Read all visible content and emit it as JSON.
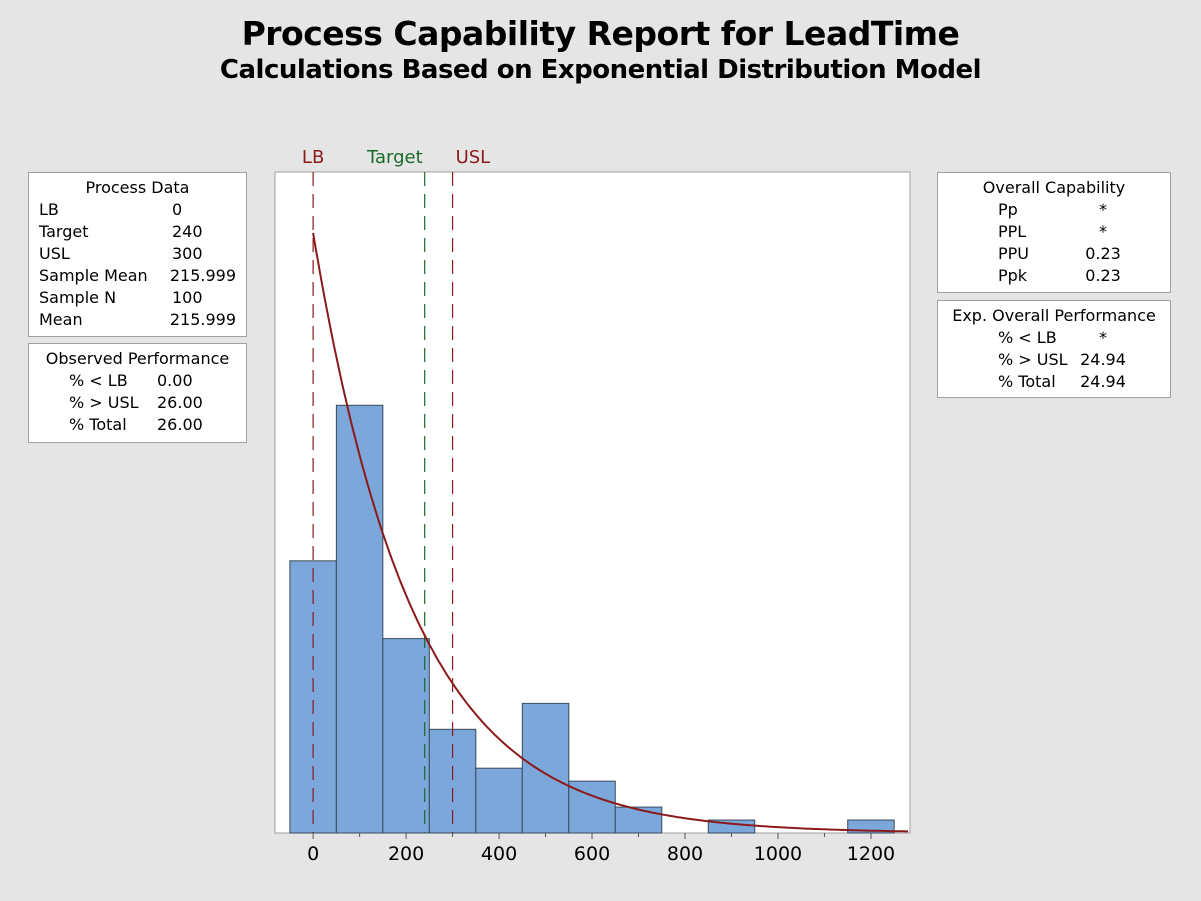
{
  "title": "Process Capability Report for LeadTime",
  "subtitle": "Calculations Based on Exponential Distribution Model",
  "process_data": {
    "heading": "Process Data",
    "rows": [
      [
        "LB",
        "0"
      ],
      [
        "Target",
        "240"
      ],
      [
        "USL",
        "300"
      ],
      [
        "Sample Mean",
        "215.999"
      ],
      [
        "Sample N",
        "100"
      ],
      [
        "Mean",
        "215.999"
      ]
    ]
  },
  "observed": {
    "heading": "Observed Performance",
    "rows": [
      [
        "% < LB",
        "0.00"
      ],
      [
        "% > USL",
        "26.00"
      ],
      [
        "% Total",
        "26.00"
      ]
    ]
  },
  "overall_capability": {
    "heading": "Overall Capability",
    "rows": [
      [
        "Pp",
        "*"
      ],
      [
        "PPL",
        "*"
      ],
      [
        "PPU",
        "0.23"
      ],
      [
        "Ppk",
        "0.23"
      ]
    ]
  },
  "exp_overall": {
    "heading": "Exp. Overall Performance",
    "rows": [
      [
        "% < LB",
        "*"
      ],
      [
        "% > USL",
        "24.94"
      ],
      [
        "% Total",
        "24.94"
      ]
    ]
  },
  "chart_data": {
    "type": "bar",
    "bin_centers": [
      0,
      100,
      200,
      300,
      400,
      500,
      600,
      700,
      800,
      900,
      1000,
      1100,
      1200
    ],
    "bin_width": 100,
    "values": [
      21,
      33,
      15,
      8,
      5,
      10,
      4,
      2,
      0,
      1,
      0,
      0,
      1
    ],
    "xlim": [
      -82,
      1284
    ],
    "ylim": [
      0,
      51
    ],
    "xticks": [
      0,
      200,
      400,
      600,
      800,
      1000,
      1200
    ],
    "fit": {
      "distribution": "exponential",
      "mean": 215.999,
      "n": 100
    },
    "reference_lines": [
      {
        "label": "LB",
        "value": 0,
        "color": "#8b1a1a"
      },
      {
        "label": "Target",
        "value": 240,
        "color": "#1a6b2a"
      },
      {
        "label": "USL",
        "value": 300,
        "color": "#8b1a1a"
      }
    ],
    "bar_color": "#7ba7da",
    "curve_color": "#8b1a1a"
  }
}
